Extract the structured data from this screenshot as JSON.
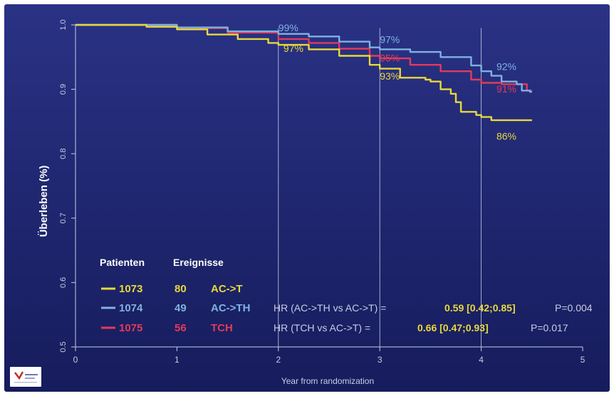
{
  "chart_data": {
    "type": "line",
    "title": "",
    "xlabel": "Year from randomization",
    "ylabel": "Überleben (%)",
    "xlim": [
      0,
      5
    ],
    "ylim": [
      0.5,
      1.0
    ],
    "x_ticks": [
      "0",
      "1",
      "2",
      "3",
      "4",
      "5"
    ],
    "y_ticks": [
      "0.5",
      "0.6",
      "0.7",
      "0.8",
      "0.9",
      "1.0"
    ],
    "x_tick_values": [
      0,
      1,
      2,
      3,
      4,
      5
    ],
    "y_tick_values": [
      0.5,
      0.6,
      0.7,
      0.8,
      0.9,
      1.0
    ],
    "reference_lines_x": [
      2,
      3,
      4
    ],
    "series": [
      {
        "name": "AC->T",
        "color": "#e8d93a",
        "points": [
          [
            0,
            1.0
          ],
          [
            0.7,
            0.997
          ],
          [
            1.0,
            0.993
          ],
          [
            1.3,
            0.985
          ],
          [
            1.6,
            0.978
          ],
          [
            1.9,
            0.972
          ],
          [
            2.0,
            0.969
          ],
          [
            2.3,
            0.962
          ],
          [
            2.6,
            0.952
          ],
          [
            2.9,
            0.938
          ],
          [
            3.0,
            0.932
          ],
          [
            3.2,
            0.918
          ],
          [
            3.45,
            0.915
          ],
          [
            3.5,
            0.912
          ],
          [
            3.6,
            0.9
          ],
          [
            3.7,
            0.893
          ],
          [
            3.75,
            0.88
          ],
          [
            3.8,
            0.865
          ],
          [
            3.95,
            0.86
          ],
          [
            4.0,
            0.857
          ],
          [
            4.1,
            0.852
          ],
          [
            4.5,
            0.852
          ]
        ]
      },
      {
        "name": "AC->TH",
        "color": "#7fb2e0",
        "points": [
          [
            0,
            1.0
          ],
          [
            1.0,
            0.996
          ],
          [
            1.5,
            0.99
          ],
          [
            2.0,
            0.986
          ],
          [
            2.3,
            0.982
          ],
          [
            2.6,
            0.974
          ],
          [
            2.9,
            0.965
          ],
          [
            3.0,
            0.962
          ],
          [
            3.3,
            0.958
          ],
          [
            3.6,
            0.95
          ],
          [
            3.9,
            0.937
          ],
          [
            4.0,
            0.928
          ],
          [
            4.1,
            0.921
          ],
          [
            4.2,
            0.912
          ],
          [
            4.35,
            0.908
          ],
          [
            4.4,
            0.898
          ],
          [
            4.48,
            0.896
          ],
          [
            4.5,
            0.896
          ]
        ]
      },
      {
        "name": "TCH",
        "color": "#e23a5a",
        "points": [
          [
            0,
            1.0
          ],
          [
            1.0,
            0.995
          ],
          [
            1.5,
            0.988
          ],
          [
            2.0,
            0.978
          ],
          [
            2.3,
            0.972
          ],
          [
            2.6,
            0.963
          ],
          [
            2.9,
            0.952
          ],
          [
            3.0,
            0.948
          ],
          [
            3.3,
            0.938
          ],
          [
            3.6,
            0.928
          ],
          [
            3.9,
            0.915
          ],
          [
            4.0,
            0.91
          ],
          [
            4.2,
            0.908
          ],
          [
            4.4,
            0.908
          ],
          [
            4.45,
            0.898
          ],
          [
            4.5,
            0.898
          ]
        ]
      }
    ],
    "annotations": [
      {
        "text": "99%",
        "x": 2.0,
        "y": 0.99,
        "series": "AC->TH"
      },
      {
        "text": "97%",
        "x": 2.05,
        "y": 0.958,
        "series": "AC->T"
      },
      {
        "text": "97%",
        "x": 3.0,
        "y": 0.972,
        "series": "AC->TH"
      },
      {
        "text": "95%",
        "x": 3.0,
        "y": 0.943,
        "series": "TCH"
      },
      {
        "text": "93%",
        "x": 3.0,
        "y": 0.915,
        "series": "AC->T"
      },
      {
        "text": "92%",
        "x": 4.15,
        "y": 0.93,
        "series": "AC->TH"
      },
      {
        "text": "91%",
        "x": 4.15,
        "y": 0.895,
        "series": "TCH"
      },
      {
        "text": "86%",
        "x": 4.15,
        "y": 0.822,
        "series": "AC->T"
      }
    ],
    "legend": {
      "header_patients": "Patienten",
      "header_events": "Ereignisse",
      "rows": [
        {
          "patients": "1073",
          "events": "80",
          "arm": "AC->T",
          "color": "#e8d93a",
          "hr_text": "",
          "hr_value": "",
          "p_value": ""
        },
        {
          "patients": "1074",
          "events": "49",
          "arm": "AC->TH",
          "color": "#7fb2e0",
          "hr_text": "HR (AC->TH vs AC->T) =",
          "hr_value": "0.59 [0.42;0.85]",
          "p_value": "P=0.004"
        },
        {
          "patients": "1075",
          "events": "56",
          "arm": "TCH",
          "color": "#e23a5a",
          "hr_text": "HR (TCH vs AC->T) =",
          "hr_value": "0.66 [0.47;0.93]",
          "p_value": "P=0.017"
        }
      ]
    }
  },
  "colors": {
    "background": "#1c2370",
    "axis": "#c8cde6",
    "tick_text": "#c8cde6",
    "white_text": "#ffffff",
    "highlight": "#e8d93a"
  }
}
